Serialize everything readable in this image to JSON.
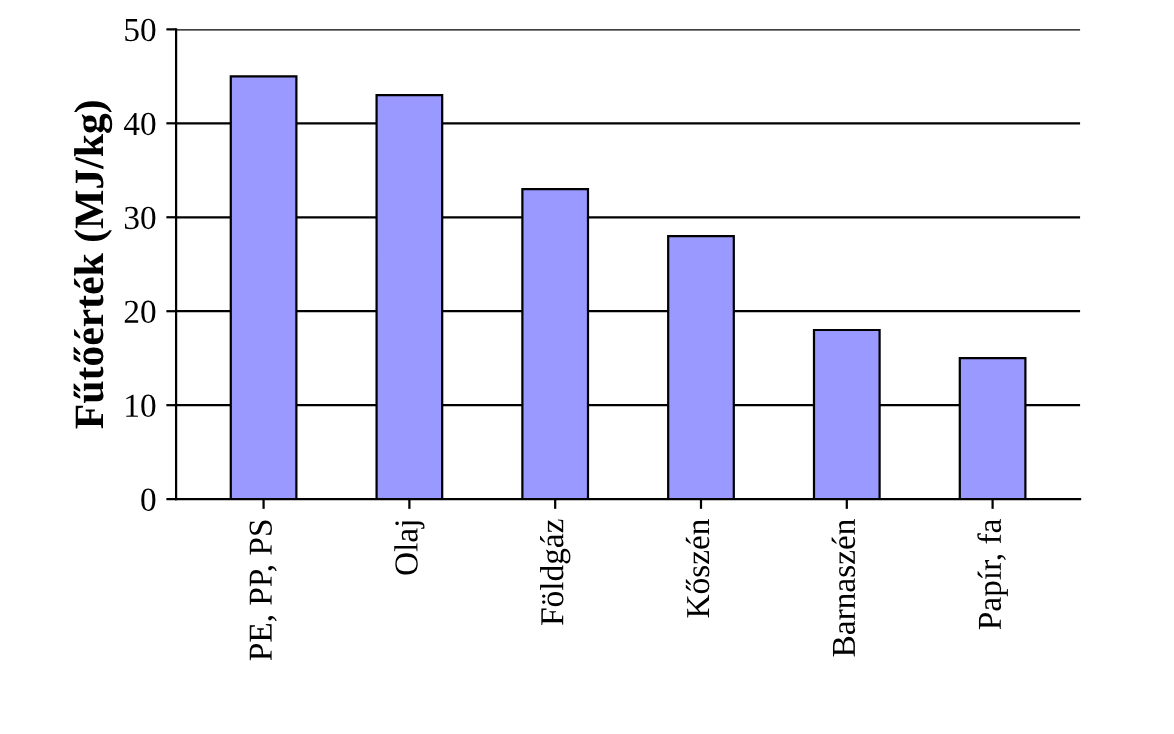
{
  "chart_data": {
    "type": "bar",
    "ylabel": "Fűtőérték (MJ/kg)",
    "categories": [
      "PE, PP, PS",
      "Olaj",
      "Földgáz",
      "Kőszén",
      "Barnaszén",
      "Papír, fa"
    ],
    "values": [
      45,
      43,
      33,
      28,
      18,
      15
    ],
    "color": "#9999ff",
    "ylim": [
      0,
      50
    ],
    "yticks": [
      0,
      10,
      20,
      30,
      40,
      50
    ],
    "grid": "y"
  }
}
